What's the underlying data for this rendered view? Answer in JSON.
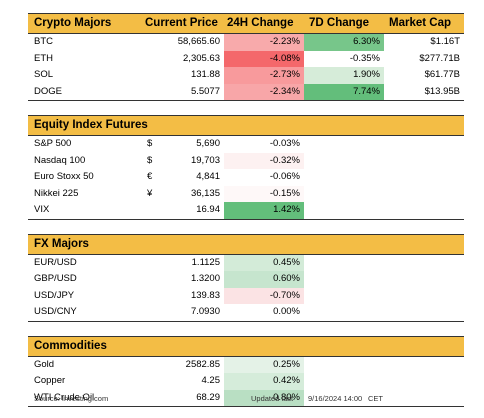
{
  "crypto": {
    "title": "Crypto Majors",
    "headers": {
      "price": "Current Price",
      "h24": "24H Change",
      "d7": "7D Change",
      "mcap": "Market Cap"
    },
    "rows": [
      {
        "name": "BTC",
        "price": "58,665.60",
        "h24": "-2.23%",
        "h24_color": "#f8aaab",
        "d7": "6.30%",
        "d7_color": "#77c68a",
        "mcap": "$1.16T"
      },
      {
        "name": "ETH",
        "price": "2,305.63",
        "h24": "-4.08%",
        "h24_color": "#f4686b",
        "d7": "-0.35%",
        "d7_color": "#ffffff",
        "mcap": "$277.71B"
      },
      {
        "name": "SOL",
        "price": "131.88",
        "h24": "-2.73%",
        "h24_color": "#f89a9c",
        "d7": "1.90%",
        "d7_color": "#d6ecd9",
        "mcap": "$61.77B"
      },
      {
        "name": "DOGE",
        "price": "5.5077",
        "h24": "-2.34%",
        "h24_color": "#f8a6a8",
        "d7": "7.74%",
        "d7_color": "#63be7b",
        "mcap": "$13.95B"
      }
    ]
  },
  "equity": {
    "title": "Equity Index Futures",
    "rows": [
      {
        "name": "S&P 500",
        "cur": "$",
        "price": "5,690",
        "chg": "-0.03%",
        "chg_color": "#ffffff"
      },
      {
        "name": "Nasdaq 100",
        "cur": "$",
        "price": "19,703",
        "chg": "-0.32%",
        "chg_color": "#fdf1f1"
      },
      {
        "name": "Euro Stoxx 50",
        "cur": "€",
        "price": "4,841",
        "chg": "-0.06%",
        "chg_color": "#ffffff"
      },
      {
        "name": "Nikkei 225",
        "cur": "¥",
        "price": "36,135",
        "chg": "-0.15%",
        "chg_color": "#fef8f8"
      },
      {
        "name": "VIX",
        "cur": "",
        "price": "16.94",
        "chg": "1.42%",
        "chg_color": "#63be7b"
      }
    ]
  },
  "fx": {
    "title": "FX Majors",
    "rows": [
      {
        "name": "EUR/USD",
        "price": "1.1125",
        "chg": "0.45%",
        "chg_color": "#d3ebd8"
      },
      {
        "name": "GBP/USD",
        "price": "1.3200",
        "chg": "0.60%",
        "chg_color": "#c6e5ce"
      },
      {
        "name": "USD/JPY",
        "price": "139.83",
        "chg": "-0.70%",
        "chg_color": "#fbe3e4"
      },
      {
        "name": "USD/CNY",
        "price": "7.0930",
        "chg": "0.00%",
        "chg_color": "#ffffff"
      }
    ]
  },
  "commodities": {
    "title": "Commodities",
    "rows": [
      {
        "name": "Gold",
        "price": "2582.85",
        "chg": "0.25%",
        "chg_color": "#e4f2e7"
      },
      {
        "name": "Copper",
        "price": "4.25",
        "chg": "0.42%",
        "chg_color": "#d5ecda"
      },
      {
        "name": "WTI Crude Oil",
        "price": "68.29",
        "chg": "0.80%",
        "chg_color": "#b9dfc3"
      }
    ]
  },
  "footer": {
    "source": "Source: Investing.com",
    "updated_label": "Updated last",
    "updated_time": "9/16/2024 14:00",
    "timezone": "CET"
  }
}
